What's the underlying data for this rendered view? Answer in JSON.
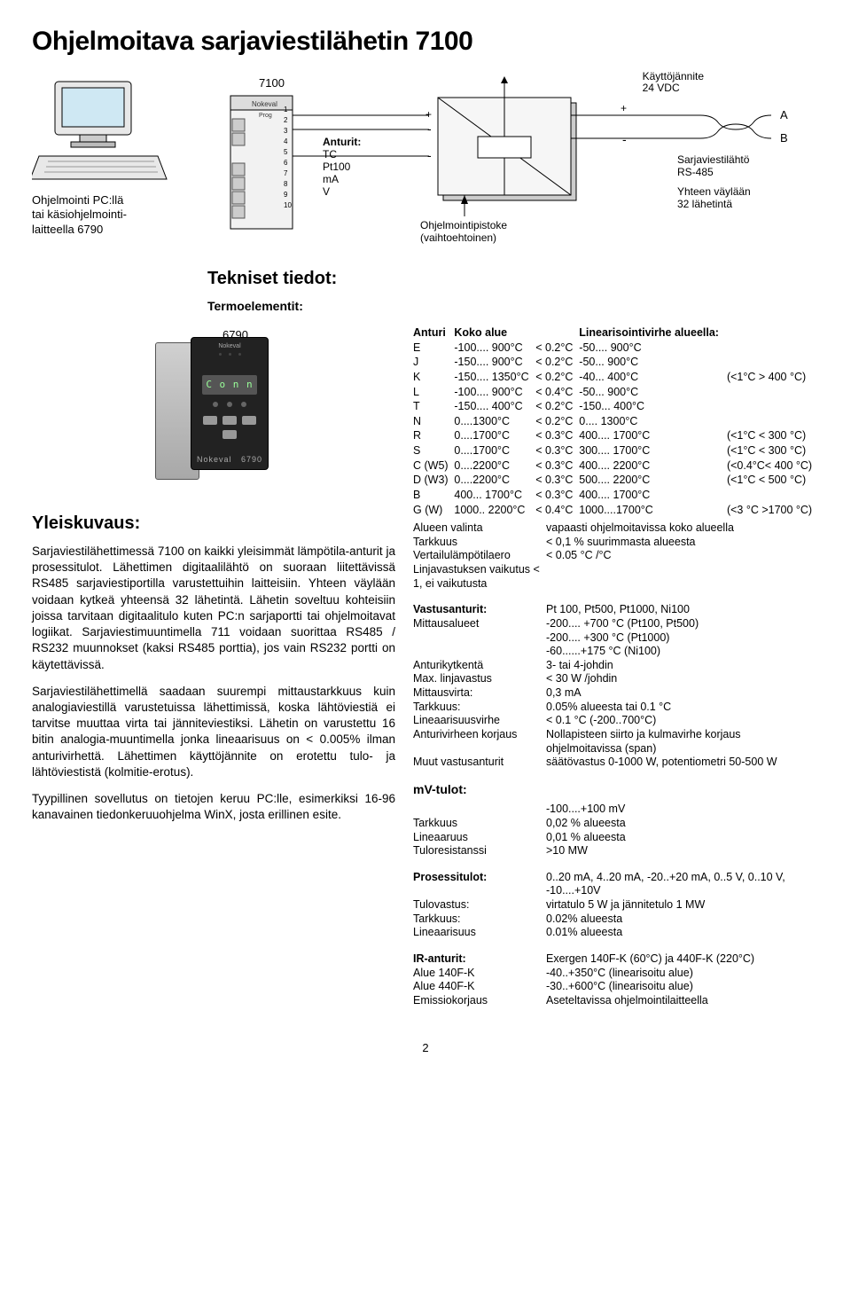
{
  "title": "Ohjelmoitava sarjaviestilähetin 7100",
  "fig": {
    "model_label": "7100",
    "pc_caption_line1": "Ohjelmointi PC:llä",
    "pc_caption_line2": "tai käsiohjelmointi-",
    "pc_caption_line3": "laitteella 6790",
    "sensors_head": "Anturit:",
    "sensors_list": "TC\nPt100\nmA\nV",
    "plug_line1": "Ohjelmointipistoke",
    "plug_line2": "(vaihtoehtoinen)",
    "voltage_line1": "Käyttöjännite",
    "voltage_line2": "24 VDC",
    "out_line1": "Sarjaviestilähtö",
    "out_line2": "RS-485",
    "out_line3": "Yhteen väylään",
    "out_line4": "32 lähetintä",
    "port_a": "A",
    "port_b": "B"
  },
  "tech_heading": "Tekniset  tiedot:",
  "thermo_heading": "Termoelementit:",
  "device_label": "6790",
  "device_display": "C o n n",
  "yleis_heading": "Yleiskuvaus:",
  "para1": "Sarjaviestilähettimessä 7100  on kaikki yleisimmät lämpötila-anturit ja prosessitulot. Lähettimen digitaalilähtö on suoraan liitettävissä RS485 sarjaviestiportilla varustettuihin laitteisiin. Yhteen väylään voidaan kytkeä yhteensä 32 lähetintä.  Lähetin soveltuu kohteisiin joissa tarvitaan digitaalitulo kuten PC:n sarjaportti tai ohjelmoitavat logiikat. Sarjaviestimuuntimella 711 voidaan suorittaa RS485 / RS232 muunnokset  (kaksi RS485 porttia),  jos vain RS232 portti on käytettävissä.",
  "para2": "Sarjaviestilähettimellä saadaan suurempi mittaustarkkuus kuin analogiaviestillä varustetuissa lähettimissä, koska lähtöviestiä ei tarvitse muuttaa virta tai jänniteviestiksi. Lähetin on varustettu 16 bitin analogia-muuntimella jonka lineaarisuus on < 0.005% ilman anturivirhettä.  Lähettimen käyttöjännite on erotettu tulo- ja lähtöviestistä (kolmitie-erotus).",
  "para3": "Tyypillinen sovellutus on tietojen keruu PC:lle, esimerkiksi 16-96 kanavainen tiedonkeruuohjelma WinX, josta erillinen esite.",
  "sensor_table": {
    "header": [
      "Anturi",
      "Koko alue",
      "",
      "Linearisointivirhe alueella:",
      ""
    ],
    "rows": [
      [
        "E",
        "-100.... 900°C",
        "< 0.2°C",
        "-50.... 900°C",
        ""
      ],
      [
        "J",
        "-150.... 900°C",
        "< 0.2°C",
        "-50... 900°C",
        ""
      ],
      [
        "K",
        "-150.... 1350°C",
        "< 0.2°C",
        "-40... 400°C",
        "(<1°C  > 400 °C)"
      ],
      [
        "L",
        "-100.... 900°C",
        "< 0.4°C",
        "-50... 900°C",
        ""
      ],
      [
        "T",
        "-150.... 400°C",
        "< 0.2°C",
        "-150... 400°C",
        ""
      ],
      [
        "N",
        "0....1300°C",
        "< 0.2°C",
        "0.... 1300°C",
        ""
      ],
      [
        "R",
        "0....1700°C",
        "< 0.3°C",
        "400.... 1700°C",
        "(<1°C  < 300 °C)"
      ],
      [
        "S",
        "0....1700°C",
        "< 0.3°C",
        "300.... 1700°C",
        "(<1°C  < 300 °C)"
      ],
      [
        "C (W5)",
        "0....2200°C",
        "< 0.3°C",
        "400.... 2200°C",
        "(<0.4°C< 400 °C)"
      ],
      [
        "D (W3)",
        "0....2200°C",
        "< 0.3°C",
        "500.... 2200°C",
        "(<1°C  < 500 °C)"
      ],
      [
        "B",
        "400... 1700°C",
        "< 0.3°C",
        "400.... 1700°C",
        ""
      ],
      [
        "G (W)",
        "1000.. 2200°C",
        "< 0.4°C",
        "1000....1700°C",
        "(<3 °C >1700 °C)"
      ]
    ],
    "footer": [
      [
        "Alueen valinta",
        "vapaasti ohjelmoitavissa koko alueella"
      ],
      [
        "Tarkkuus",
        "< 0,1 % suurimmasta alueesta"
      ],
      [
        "Vertailulämpötilaero",
        "< 0.05 °C /°C"
      ],
      [
        "Linjavastuksen vaikutus < 1, ei vaikutusta",
        ""
      ]
    ]
  },
  "vastus_heading": "Vastusanturit:",
  "vastus_rows": [
    [
      "Vastusanturit:",
      "Pt 100, Pt500, Pt1000, Ni100"
    ],
    [
      "Mittausalueet",
      "-200.... +700 °C (Pt100, Pt500)"
    ],
    [
      "",
      "-200.... +300 °C (Pt1000)"
    ],
    [
      "",
      "-60......+175 °C (Ni100)"
    ],
    [
      "Anturikytkentä",
      "3- tai 4-johdin"
    ],
    [
      "Max. linjavastus",
      "< 30 W /johdin"
    ],
    [
      "Mittausvirta:",
      "0,3 mA"
    ],
    [
      "Tarkkuus:",
      "0.05% alueesta tai 0.1 °C"
    ],
    [
      "Lineaarisuusvirhe",
      "< 0.1 °C (-200..700°C)"
    ],
    [
      "Anturivirheen korjaus",
      "Nollapisteen siirto ja kulmavirhe korjaus ohjelmoitavissa (span)"
    ],
    [
      "Muut vastusanturit",
      "säätövastus 0-1000 W, potentiometri 50-500 W"
    ]
  ],
  "mv_heading": "mV-tulot:",
  "mv_rows": [
    [
      "",
      "-100....+100 mV"
    ],
    [
      "Tarkkuus",
      "0,02 % alueesta"
    ],
    [
      "Lineaaruus",
      "0,01 % alueesta"
    ],
    [
      "Tuloresistanssi",
      ">10 MW"
    ]
  ],
  "prosessi_heading": "Prosessitulot:",
  "prosessi_rows": [
    [
      "Prosessitulot:",
      "0..20 mA, 4..20 mA, -20..+20 mA, 0..5 V, 0..10 V, -10....+10V"
    ],
    [
      "Tulovastus:",
      "virtatulo 5 W ja jännitetulo 1 MW"
    ],
    [
      "Tarkkuus:",
      "0.02% alueesta"
    ],
    [
      "Lineaarisuus",
      "0.01% alueesta"
    ]
  ],
  "ir_heading": "IR-anturit:",
  "ir_rows": [
    [
      "IR-anturit:",
      "Exergen 140F-K (60°C) ja 440F-K (220°C)"
    ],
    [
      "Alue 140F-K",
      "-40..+350°C (linearisoitu alue)"
    ],
    [
      "Alue 440F-K",
      "-30..+600°C (linearisoitu alue)"
    ],
    [
      "Emissiokorjaus",
      "Aseteltavissa ohjelmointilaitteella"
    ]
  ],
  "page_number": "2",
  "colors": {
    "text": "#000000",
    "bg": "#ffffff",
    "svg_stroke": "#000000",
    "svg_fill_light": "#e8e8e8",
    "svg_fill_mid": "#cccccc",
    "svg_fill_dark": "#888888"
  }
}
